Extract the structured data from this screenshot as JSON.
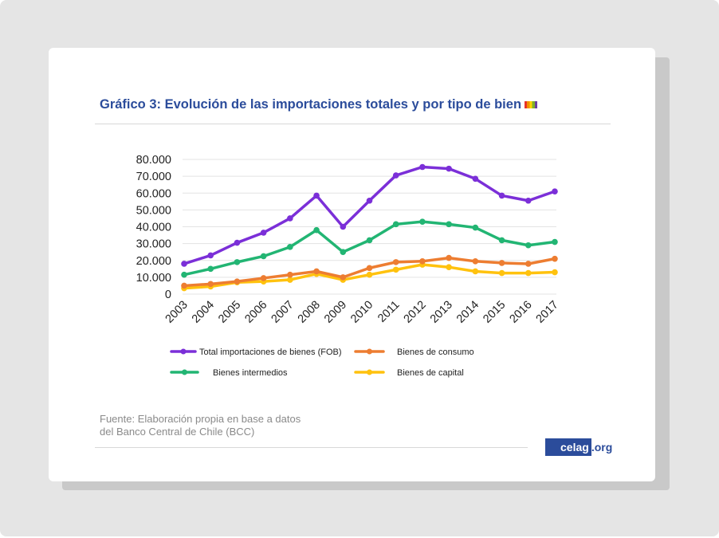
{
  "header": {
    "title": "Gráfico 3: Evolución de las importaciones totales y por tipo de bien"
  },
  "footer": {
    "source_line1": "Fuente: Elaboración propia en base a datos",
    "source_line2": "del Banco Central de Chile (BCC)",
    "logo_main": "celag",
    "logo_ext": ".org"
  },
  "colors": {
    "title": "#2b4c9b",
    "total": "#7b2fd8",
    "consumo": "#ed7d31",
    "intermedios": "#22b573",
    "capital": "#ffc20e"
  },
  "chart_data": {
    "type": "line",
    "x": [
      "2003",
      "2004",
      "2005",
      "2006",
      "2007",
      "2008",
      "2009",
      "2010",
      "2011",
      "2012",
      "2013",
      "2014",
      "2015",
      "2016",
      "2017"
    ],
    "ylim": [
      0,
      80000
    ],
    "yticks": [
      "0",
      "10.000",
      "20.000",
      "30.000",
      "40.000",
      "50.000",
      "60.000",
      "70.000",
      "80.000"
    ],
    "ytick_values": [
      0,
      10000,
      20000,
      30000,
      40000,
      50000,
      60000,
      70000,
      80000
    ],
    "grid": true,
    "legend_position": "bottom",
    "series": [
      {
        "name": "Total importaciones de bienes (FOB)",
        "color": "#7b2fd8",
        "values": [
          18000,
          23000,
          30500,
          36500,
          45000,
          58500,
          40000,
          55500,
          70500,
          75500,
          74500,
          68500,
          58500,
          55500,
          61000
        ]
      },
      {
        "name": "Bienes de consumo",
        "color": "#ed7d31",
        "values": [
          5000,
          6000,
          7500,
          9500,
          11500,
          13500,
          10000,
          15500,
          19000,
          19500,
          21500,
          19500,
          18500,
          18000,
          21000
        ]
      },
      {
        "name": "Bienes intermedios",
        "color": "#22b573",
        "values": [
          11500,
          15000,
          19000,
          22500,
          28000,
          38000,
          25000,
          32000,
          41500,
          43000,
          41500,
          39500,
          32000,
          29000,
          31000
        ]
      },
      {
        "name": "Bienes de capital",
        "color": "#ffc20e",
        "values": [
          3500,
          4500,
          7000,
          7500,
          8500,
          12000,
          8500,
          11500,
          14500,
          17500,
          16000,
          13500,
          12500,
          12500,
          13000
        ]
      }
    ]
  }
}
